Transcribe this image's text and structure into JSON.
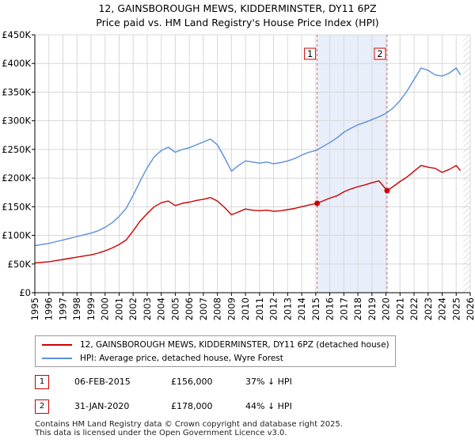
{
  "title": {
    "line1": "12, GAINSBOROUGH MEWS, KIDDERMINSTER, DY11 6PZ",
    "line2": "Price paid vs. HM Land Registry's House Price Index (HPI)"
  },
  "chart_data": {
    "type": "line",
    "ylim": [
      0,
      450000
    ],
    "xlim": [
      1995,
      2026
    ],
    "yticks": [
      {
        "value": 0,
        "label": "£0"
      },
      {
        "value": 50000,
        "label": "£50K"
      },
      {
        "value": 100000,
        "label": "£100K"
      },
      {
        "value": 150000,
        "label": "£150K"
      },
      {
        "value": 200000,
        "label": "£200K"
      },
      {
        "value": 250000,
        "label": "£250K"
      },
      {
        "value": 300000,
        "label": "£300K"
      },
      {
        "value": 350000,
        "label": "£350K"
      },
      {
        "value": 400000,
        "label": "£400K"
      },
      {
        "value": 450000,
        "label": "£450K"
      }
    ],
    "xticks": [
      "1995",
      "1996",
      "1997",
      "1998",
      "1999",
      "2000",
      "2001",
      "2002",
      "2003",
      "2004",
      "2005",
      "2006",
      "2007",
      "2008",
      "2009",
      "2010",
      "2011",
      "2012",
      "2013",
      "2014",
      "2015",
      "2016",
      "2017",
      "2018",
      "2019",
      "2020",
      "2021",
      "2022",
      "2023",
      "2024",
      "2025",
      "2026"
    ],
    "grid": true,
    "shaded_period": [
      2015.1,
      2020.08
    ],
    "future_hatch_from": 2025.5,
    "series": [
      {
        "name": "12, GAINSBOROUGH MEWS, KIDDERMINSTER, DY11 6PZ (detached house)",
        "color": "#cc0000",
        "x": [
          1995,
          1995.5,
          1996,
          1996.5,
          1997,
          1997.5,
          1998,
          1998.5,
          1999,
          1999.5,
          2000,
          2000.5,
          2001,
          2001.5,
          2002,
          2002.5,
          2003,
          2003.5,
          2004,
          2004.5,
          2005,
          2005.5,
          2006,
          2006.5,
          2007,
          2007.5,
          2008,
          2008.5,
          2009,
          2009.5,
          2010,
          2010.5,
          2011,
          2011.5,
          2012,
          2012.5,
          2013,
          2013.5,
          2014,
          2014.5,
          2015.1,
          2015.5,
          2016,
          2016.5,
          2017,
          2017.5,
          2018,
          2018.5,
          2019,
          2019.5,
          2020.08,
          2020.5,
          2021,
          2021.5,
          2022,
          2022.5,
          2023,
          2023.5,
          2024,
          2024.5,
          2025,
          2025.3
        ],
        "y": [
          52000,
          53000,
          54000,
          56000,
          58000,
          60000,
          62000,
          64000,
          66000,
          69000,
          73000,
          78000,
          84000,
          92000,
          108000,
          125000,
          138000,
          150000,
          157000,
          160000,
          152000,
          156000,
          158000,
          161000,
          163000,
          166000,
          160000,
          149000,
          136000,
          141000,
          146000,
          144000,
          143000,
          144000,
          142000,
          143000,
          145000,
          147000,
          150000,
          153000,
          156000,
          160000,
          165000,
          169000,
          176000,
          181000,
          185000,
          188000,
          192000,
          195000,
          178000,
          185000,
          194000,
          202000,
          212000,
          222000,
          219000,
          217000,
          210000,
          215000,
          222000,
          213000
        ]
      },
      {
        "name": "HPI: Average price, detached house, Wyre Forest",
        "color": "#5b8fd6",
        "x": [
          1995,
          1995.5,
          1996,
          1996.5,
          1997,
          1997.5,
          1998,
          1998.5,
          1999,
          1999.5,
          2000,
          2000.5,
          2001,
          2001.5,
          2002,
          2002.5,
          2003,
          2003.5,
          2004,
          2004.5,
          2005,
          2005.5,
          2006,
          2006.5,
          2007,
          2007.5,
          2008,
          2008.5,
          2009,
          2009.5,
          2010,
          2010.5,
          2011,
          2011.5,
          2012,
          2012.5,
          2013,
          2013.5,
          2014,
          2014.5,
          2015,
          2015.5,
          2016,
          2016.5,
          2017,
          2017.5,
          2018,
          2018.5,
          2019,
          2019.5,
          2020,
          2020.5,
          2021,
          2021.5,
          2022,
          2022.5,
          2023,
          2023.5,
          2024,
          2024.5,
          2025,
          2025.3
        ],
        "y": [
          82000,
          84000,
          86000,
          89000,
          92000,
          95000,
          98000,
          101000,
          104000,
          108000,
          114000,
          122000,
          133000,
          147000,
          170000,
          195000,
          218000,
          237000,
          248000,
          254000,
          245000,
          250000,
          253000,
          258000,
          263000,
          268000,
          258000,
          236000,
          212000,
          222000,
          230000,
          228000,
          226000,
          228000,
          225000,
          227000,
          230000,
          234000,
          240000,
          245000,
          248000,
          255000,
          262000,
          270000,
          280000,
          287000,
          293000,
          297000,
          302000,
          307000,
          313000,
          322000,
          335000,
          352000,
          372000,
          392000,
          388000,
          380000,
          378000,
          383000,
          392000,
          380000
        ]
      }
    ],
    "sales": [
      {
        "label": "1",
        "x": 2015.1,
        "y": 156000
      },
      {
        "label": "2",
        "x": 2020.08,
        "y": 178000
      }
    ]
  },
  "legend": {
    "items": [
      {
        "label": "12, GAINSBOROUGH MEWS, KIDDERMINSTER, DY11 6PZ (detached house)",
        "color": "#cc0000"
      },
      {
        "label": "HPI: Average price, detached house, Wyre Forest",
        "color": "#5b8fd6"
      }
    ]
  },
  "sales_table": [
    {
      "label": "1",
      "date": "06-FEB-2015",
      "price": "£156,000",
      "hpi": "37% ↓ HPI"
    },
    {
      "label": "2",
      "date": "31-JAN-2020",
      "price": "£178,000",
      "hpi": "44% ↓ HPI"
    }
  ],
  "footer": {
    "line1": "Contains HM Land Registry data © Crown copyright and database right 2025.",
    "line2": "This data is licensed under the Open Government Licence v3.0."
  }
}
